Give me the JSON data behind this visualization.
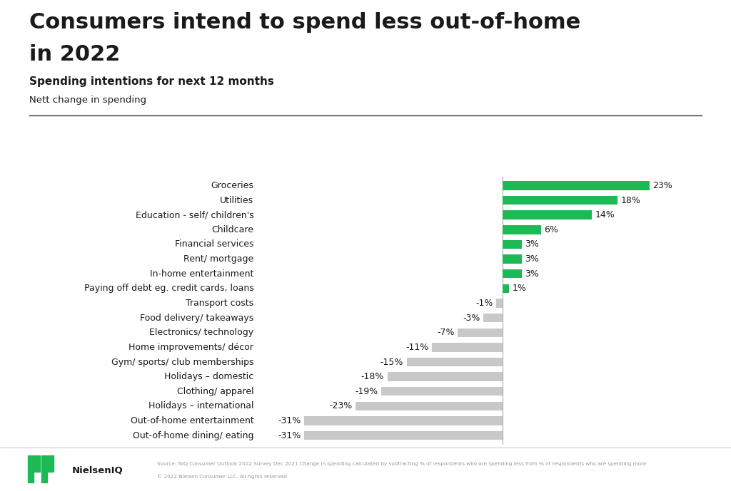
{
  "title_line1": "Consumers intend to spend less out-of-home",
  "title_line2": "in 2022",
  "subtitle": "Spending intentions for next 12 months",
  "subtitle2": "Nett change in spending",
  "categories": [
    "Out-of-home dining/ eating",
    "Out-of-home entertainment",
    "Holidays – international",
    "Clothing/ apparel",
    "Holidays – domestic",
    "Gym/ sports/ club memberships",
    "Home improvements/ décor",
    "Electronics/ technology",
    "Food delivery/ takeaways",
    "Transport costs",
    "Paying off debt eg. credit cards, loans",
    "In-home entertainment",
    "Rent/ mortgage",
    "Financial services",
    "Childcare",
    "Education - self/ children's",
    "Utilities",
    "Groceries"
  ],
  "values": [
    -31,
    -31,
    -23,
    -19,
    -18,
    -15,
    -11,
    -7,
    -3,
    -1,
    1,
    3,
    3,
    3,
    6,
    14,
    18,
    23
  ],
  "positive_color": "#1db954",
  "negative_color": "#c8c8c8",
  "background_color": "#ffffff",
  "text_color": "#1a1a1a",
  "source_line1": "Source: NiQ Consumer Outlook 2022 Survey Dec 2021 Change in spending calculated by subtracting % of respondents who are spending less from % of respondents who are spending more",
  "source_line2": "© 2022 Nielsen Consumer LLC. All rights reserved.",
  "xlim": [
    -38,
    30
  ],
  "bar_height": 0.6,
  "title_fontsize": 22,
  "subtitle_fontsize": 11,
  "label_fontsize": 9,
  "value_fontsize": 9
}
